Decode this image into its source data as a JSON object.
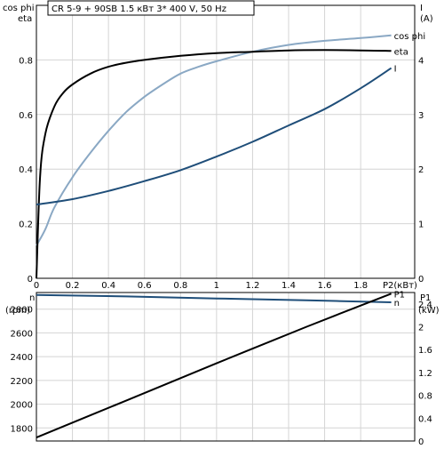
{
  "chart_data": [
    {
      "type": "line",
      "title": "CR 5-9 + 90SB    1.5 кВт   3* 400 V, 50 Hz",
      "left_axis_label_1": "cos phi",
      "left_axis_label_2": "eta",
      "right_axis_label_1": "I",
      "right_axis_label_2": "(A)",
      "xlabel": "P2(кВт)",
      "xlim": [
        0,
        2.1
      ],
      "ylim_left": [
        0,
        1.0
      ],
      "ylim_right": [
        0,
        5
      ],
      "x_ticks": [
        "0",
        "0.2",
        "0.4",
        "0.6",
        "0.8",
        "1",
        "1.2",
        "1.4",
        "1.6",
        "1.8"
      ],
      "y_ticks_left": [
        "0",
        "0.2",
        "0.4",
        "0.6",
        "0.8"
      ],
      "y_ticks_right": [
        "0",
        "1",
        "2",
        "3",
        "4"
      ],
      "grid": true,
      "series": [
        {
          "name": "cos phi",
          "axis": "left",
          "color": "#8aa8c4",
          "x": [
            0.0,
            0.05,
            0.1,
            0.2,
            0.3,
            0.4,
            0.5,
            0.6,
            0.7,
            0.8,
            0.9,
            1.0,
            1.2,
            1.4,
            1.6,
            1.8,
            1.97
          ],
          "y": [
            0.12,
            0.18,
            0.26,
            0.37,
            0.46,
            0.54,
            0.61,
            0.665,
            0.71,
            0.75,
            0.775,
            0.795,
            0.83,
            0.855,
            0.87,
            0.88,
            0.89
          ]
        },
        {
          "name": "eta",
          "axis": "left",
          "color": "#000000",
          "x": [
            0.0,
            0.02,
            0.05,
            0.1,
            0.15,
            0.2,
            0.3,
            0.4,
            0.5,
            0.6,
            0.8,
            1.0,
            1.2,
            1.4,
            1.6,
            1.8,
            1.97
          ],
          "y": [
            0.0,
            0.37,
            0.53,
            0.63,
            0.68,
            0.71,
            0.75,
            0.775,
            0.79,
            0.8,
            0.815,
            0.825,
            0.83,
            0.835,
            0.836,
            0.835,
            0.833
          ]
        },
        {
          "name": "I",
          "axis": "right",
          "color": "#1f4e79",
          "x": [
            0.0,
            0.2,
            0.4,
            0.6,
            0.8,
            1.0,
            1.2,
            1.4,
            1.6,
            1.8,
            1.97
          ],
          "y": [
            1.35,
            1.45,
            1.6,
            1.78,
            1.98,
            2.23,
            2.5,
            2.8,
            3.1,
            3.48,
            3.85
          ]
        }
      ]
    },
    {
      "type": "line",
      "left_axis_label_1": "n",
      "left_axis_label_2": "(rpm)",
      "right_axis_label_1": "P1",
      "right_axis_label_2": "(kW)",
      "xlim": [
        0,
        2.1
      ],
      "ylim_left": [
        1690,
        2940
      ],
      "ylim_right": [
        0,
        2.6
      ],
      "y_ticks_left": [
        "1800",
        "2000",
        "2200",
        "2400",
        "2600",
        "2800"
      ],
      "y_ticks_right": [
        "0",
        "0.4",
        "0.8",
        "1.2",
        "1.6",
        "2",
        "2.4"
      ],
      "grid": true,
      "series": [
        {
          "name": "n",
          "axis": "left",
          "color": "#1f4e79",
          "x": [
            0.0,
            0.5,
            1.0,
            1.5,
            1.97
          ],
          "y": [
            2920,
            2907,
            2890,
            2874,
            2858
          ]
        },
        {
          "name": "P1",
          "axis": "right",
          "color": "#000000",
          "x": [
            0.0,
            0.5,
            1.0,
            1.5,
            1.97
          ],
          "y": [
            0.06,
            0.71,
            1.36,
            2.0,
            2.58
          ]
        }
      ]
    }
  ]
}
